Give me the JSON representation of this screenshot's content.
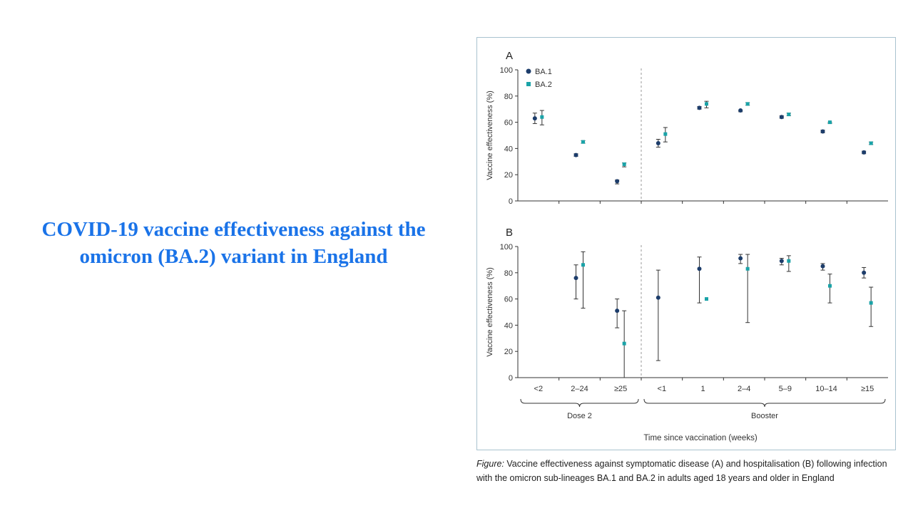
{
  "slide": {
    "title": "COVID-19 vaccine effectiveness against the omicron (BA.2) variant in England"
  },
  "figure": {
    "caption_label": "Figure:",
    "caption_text": " Vaccine effectiveness against symptomatic disease (A) and hospitalisation (B) following infection with the omicron sub-lineages BA.1 and BA.2 in adults aged 18 years and older in England",
    "dose_group_label": "Dose 2",
    "booster_group_label": "Booster",
    "xlabel": "Time since vaccination (weeks)",
    "colors": {
      "BA.1": "#1d3d6b",
      "BA.2": "#1aa3a8",
      "axis": "#333333",
      "divider": "#9a9a9a"
    }
  },
  "chart_data": [
    {
      "panel": "A",
      "type": "scatter",
      "title": "A",
      "ylabel": "Vaccine effectiveness (%)",
      "ylim": [
        0,
        100
      ],
      "yticks": [
        0,
        20,
        40,
        60,
        80,
        100
      ],
      "categories": [
        "<2",
        "2–24",
        "≥25",
        "<1",
        "1",
        "2–4",
        "5–9",
        "10–14",
        "≥15"
      ],
      "legend": [
        "BA.1",
        "BA.2"
      ],
      "series": [
        {
          "name": "BA.1",
          "values": [
            63,
            35,
            15,
            44,
            71,
            69,
            64,
            53,
            37
          ],
          "lower": [
            59,
            34,
            13,
            41,
            70,
            68,
            63,
            52,
            36
          ],
          "upper": [
            67,
            36,
            16,
            47,
            72,
            69,
            65,
            54,
            38
          ]
        },
        {
          "name": "BA.2",
          "values": [
            64,
            45,
            28,
            51,
            74,
            74,
            66,
            60,
            44
          ],
          "lower": [
            58,
            44,
            26,
            45,
            71,
            73,
            65,
            59,
            43
          ],
          "upper": [
            69,
            46,
            29,
            56,
            76,
            75,
            67,
            60,
            45
          ]
        }
      ]
    },
    {
      "panel": "B",
      "type": "scatter",
      "title": "B",
      "ylabel": "Vaccine effectiveness (%)",
      "ylim": [
        0,
        100
      ],
      "yticks": [
        0,
        20,
        40,
        60,
        80,
        100
      ],
      "categories": [
        "<2",
        "2–24",
        "≥25",
        "<1",
        "1",
        "2–4",
        "5–9",
        "10–14",
        "≥15"
      ],
      "series": [
        {
          "name": "BA.1",
          "values": [
            null,
            76,
            51,
            61,
            83,
            91,
            89,
            85,
            80
          ],
          "lower": [
            null,
            60,
            38,
            13,
            57,
            87,
            86,
            82,
            76
          ],
          "upper": [
            null,
            86,
            60,
            82,
            92,
            94,
            91,
            87,
            84
          ]
        },
        {
          "name": "BA.2",
          "values": [
            null,
            86,
            26,
            null,
            60,
            83,
            89,
            70,
            57
          ],
          "lower": [
            null,
            53,
            0,
            null,
            null,
            42,
            81,
            57,
            39
          ],
          "upper": [
            null,
            96,
            51,
            null,
            null,
            94,
            93,
            79,
            69
          ]
        }
      ]
    }
  ]
}
